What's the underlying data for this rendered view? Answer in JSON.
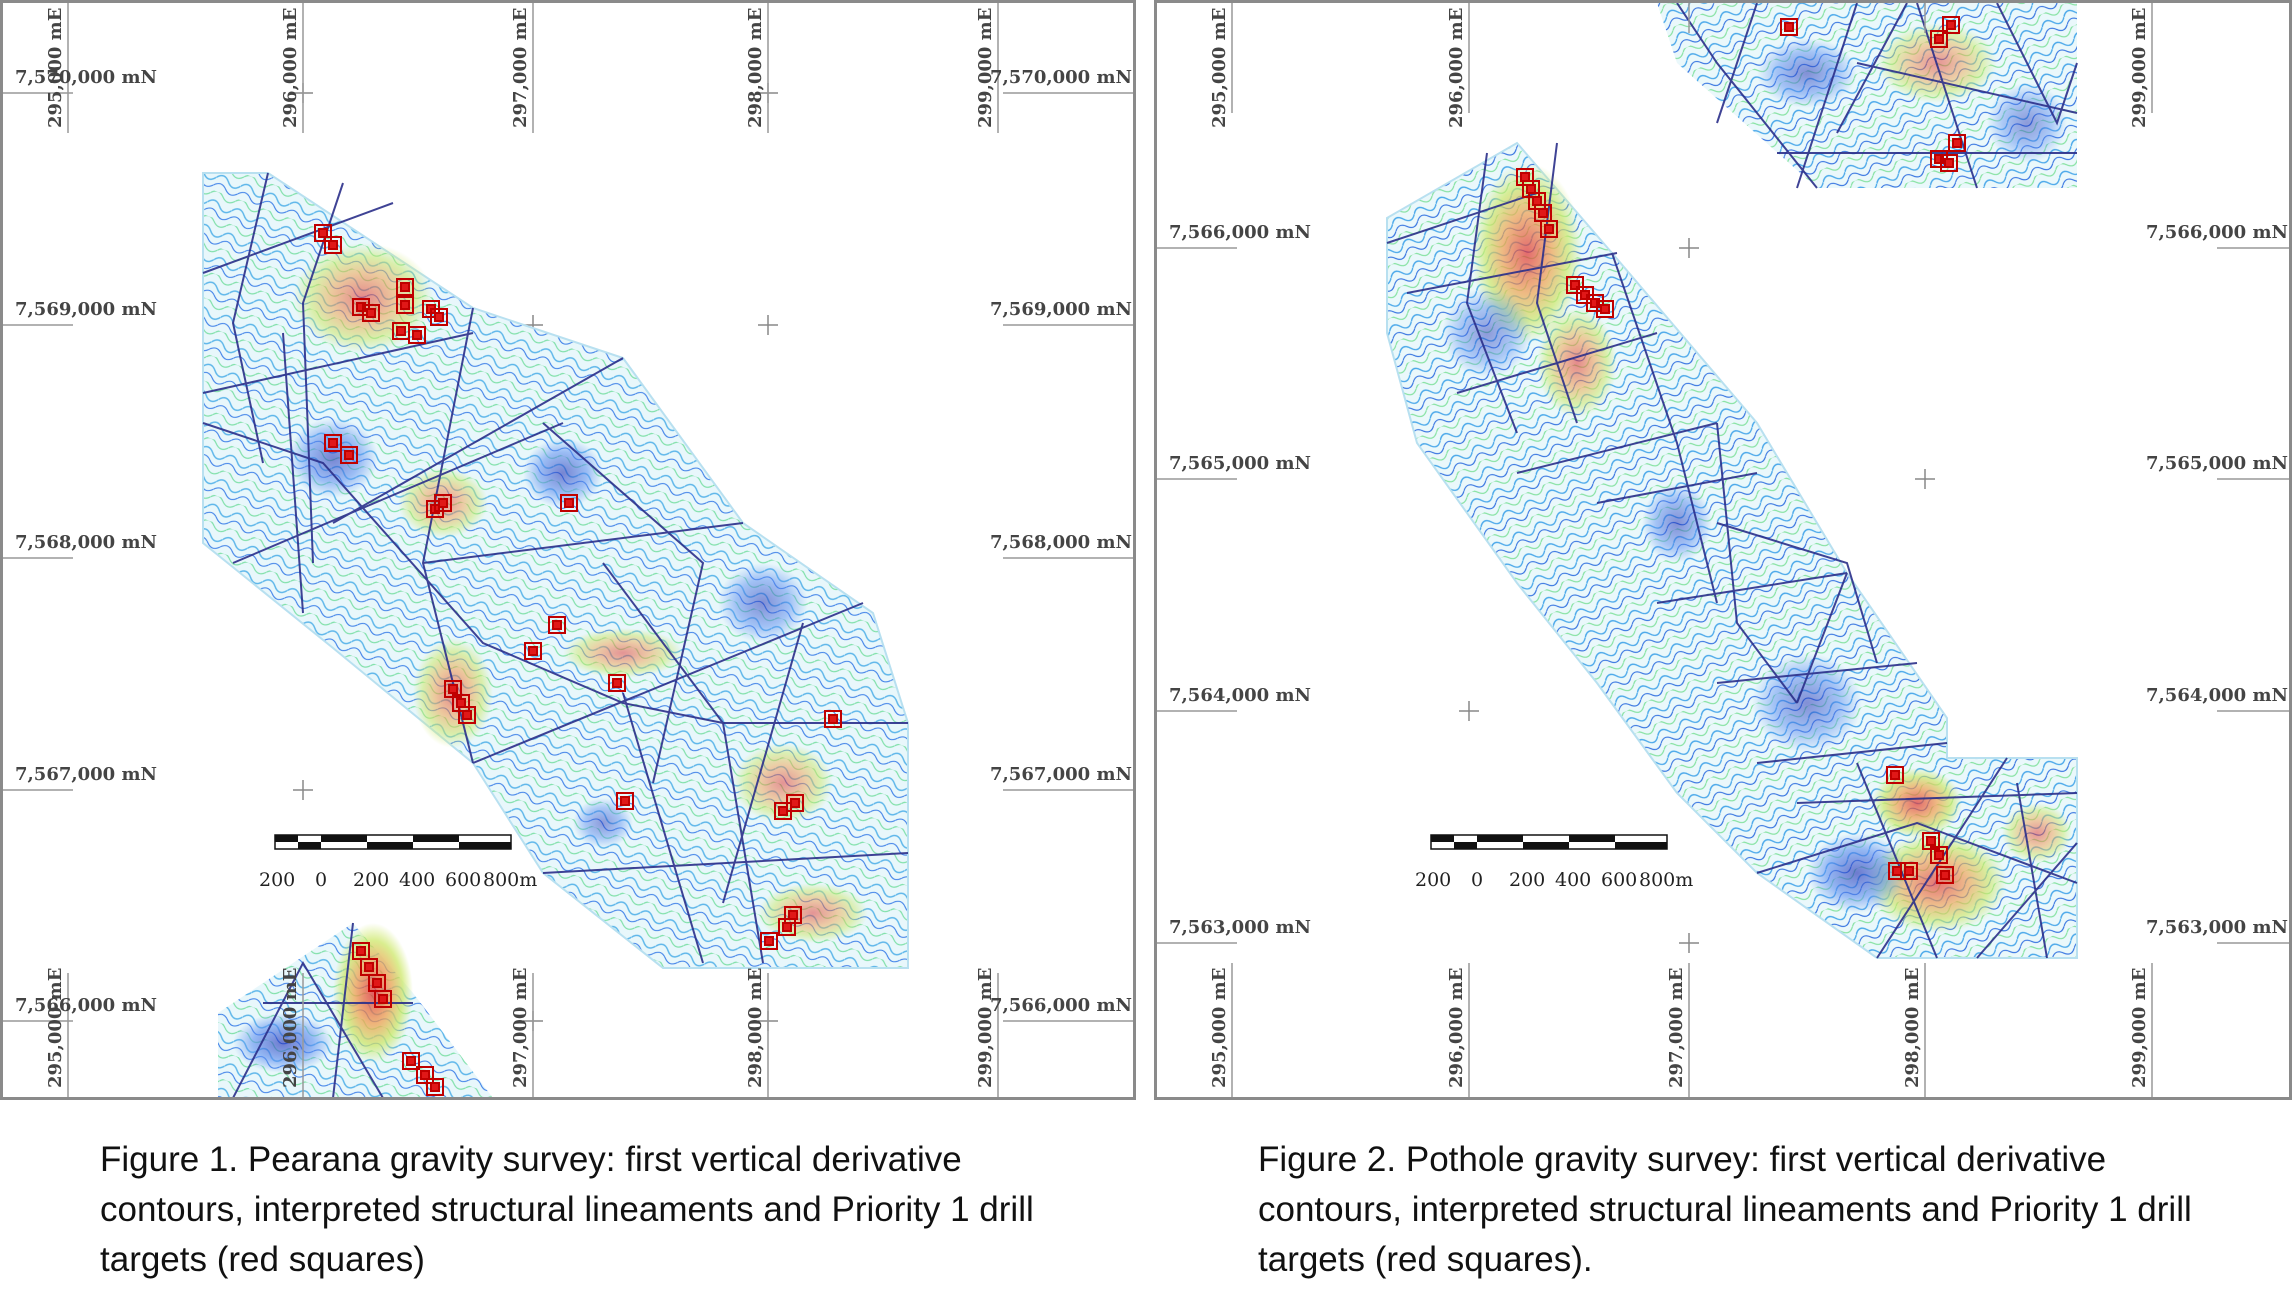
{
  "figure1": {
    "easting_labels": [
      "295,000 mE",
      "296,000 mE",
      "297,000 mE",
      "298,000 mE",
      "299,000 mE"
    ],
    "northing_labels": [
      "7,570,000 mN",
      "7,569,000 mN",
      "7,568,000 mN",
      "7,567,000 mN",
      "7,566,000 mN"
    ],
    "scale_labels": [
      "200",
      "0",
      "200",
      "400",
      "600",
      "800m"
    ],
    "caption": "Figure 1. Pearana gravity survey: first vertical derivative contours, interpreted structural lineaments and Priority 1 drill targets (red squares)"
  },
  "figure2": {
    "easting_labels": [
      "295,000 mE",
      "296,000 mE",
      "297,000 mE",
      "298,000 mE",
      "299,000 mE"
    ],
    "northing_labels": [
      "7,566,000 mN",
      "7,565,000 mN",
      "7,564,000 mN",
      "7,563,000 mN"
    ],
    "scale_labels": [
      "200",
      "0",
      "200",
      "400",
      "600",
      "800m"
    ],
    "caption": "Figure 2. Pothole gravity survey: first vertical derivative contours, interpreted structural lineaments and Priority 1 drill targets (red squares)."
  },
  "colors": {
    "contour_blue": "#2f6fe0",
    "contour_cyan": "#36c7d8",
    "contour_green": "#7fe07a",
    "anomaly_orange": "#f0b060",
    "lineament": "#2b2f8a",
    "target_red": "#e01818"
  }
}
